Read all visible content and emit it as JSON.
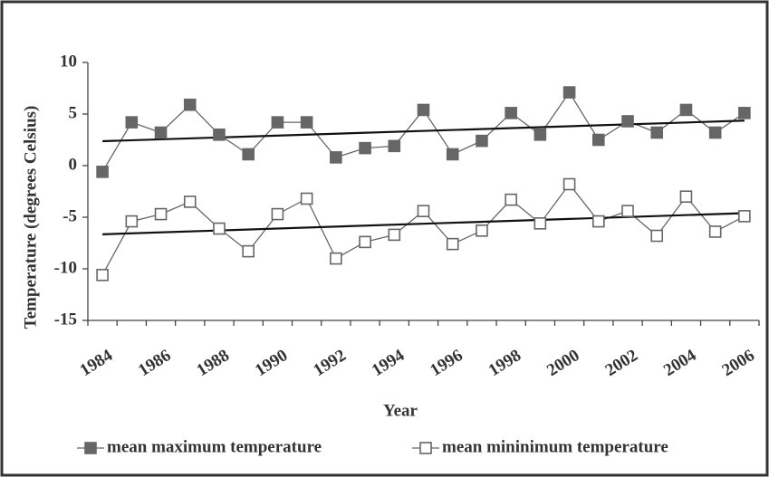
{
  "chart_data": {
    "type": "line",
    "xlabel": "Year",
    "ylabel": "Temperature (degrees Celsius)",
    "categories": [
      "1984",
      null,
      "1986",
      null,
      "1988",
      null,
      "1990",
      null,
      "1992",
      null,
      "1994",
      null,
      "1996",
      null,
      "1998",
      null,
      "2000",
      null,
      "2002",
      null,
      "2004",
      null,
      "2006"
    ],
    "series": [
      {
        "name": "mean maximum temperature",
        "color": "#666666",
        "marker": "filled-square",
        "trendline": "linear",
        "values": [
          -0.6,
          4.2,
          3.2,
          5.9,
          3.0,
          1.1,
          4.2,
          4.2,
          0.8,
          1.7,
          1.9,
          5.4,
          1.1,
          2.4,
          5.1,
          3.0,
          7.1,
          2.5,
          4.3,
          3.2,
          5.4,
          3.2,
          5.1
        ]
      },
      {
        "name": "mean mininimum temperature",
        "color": "#666666",
        "marker": "open-square",
        "trendline": "linear",
        "values": [
          -10.6,
          -5.4,
          -4.7,
          -3.5,
          -6.1,
          -8.3,
          -4.7,
          -3.2,
          -9.0,
          -7.4,
          -6.7,
          -4.4,
          -7.6,
          -6.3,
          -3.3,
          -5.6,
          -1.8,
          -5.4,
          -4.4,
          -6.8,
          -3.0,
          -6.4,
          -4.9
        ]
      }
    ],
    "ylim": [
      -15,
      10
    ],
    "yticks": [
      -15,
      -10,
      -5,
      0,
      5,
      10
    ],
    "grid": false,
    "legend": "bottom"
  }
}
